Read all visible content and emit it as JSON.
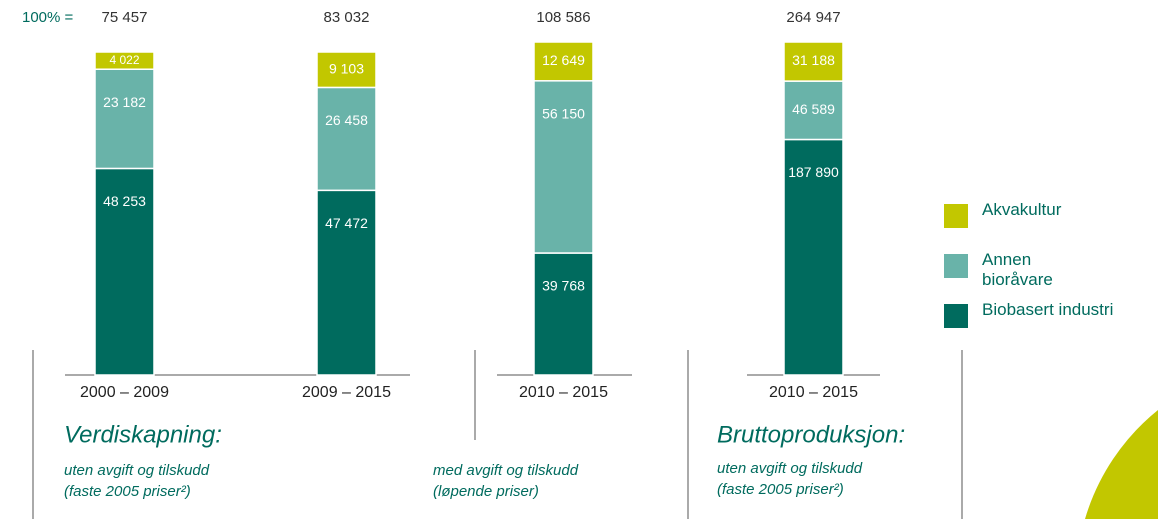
{
  "chart_data": {
    "type": "bar",
    "stacked": true,
    "normalized": true,
    "total_prefix": "100% =",
    "totals": [
      75457,
      83032,
      108586,
      264947
    ],
    "total_labels": [
      "75 457",
      "83 032",
      "108 586",
      "264 947"
    ],
    "categories": [
      "2000 – 2009",
      "2009 – 2015",
      "2010 – 2015",
      "2010 – 2015"
    ],
    "series": [
      {
        "name": "Biobasert industri",
        "color": "#006b5e",
        "values": [
          48253,
          47472,
          39768,
          187890
        ],
        "value_labels": [
          "48 253",
          "47 472",
          "39 768",
          "187 890"
        ]
      },
      {
        "name": "Annen bioråvare",
        "color": "#69b3a9",
        "values": [
          23182,
          26458,
          56150,
          46589
        ],
        "value_labels": [
          "23 182",
          "26 458",
          "56 150",
          "46 589"
        ]
      },
      {
        "name": "Akvakultur",
        "color": "#c2c700",
        "values": [
          4022,
          9103,
          12649,
          31188
        ],
        "value_labels": [
          "4 022",
          "9 103",
          "12 649",
          "31 188"
        ]
      }
    ],
    "annotations": {
      "left_title": "Verdiskapning:",
      "left_note_1": "uten avgift og tilskudd",
      "left_note_2": "(faste 2005 priser²)",
      "mid_note_1": "med avgift og tilskudd",
      "mid_note_2": "(løpende priser)",
      "right_title": "Bruttoproduksjon:",
      "right_note_1": "uten avgift og tilskudd",
      "right_note_2": "(faste 2005 priser²)"
    }
  }
}
